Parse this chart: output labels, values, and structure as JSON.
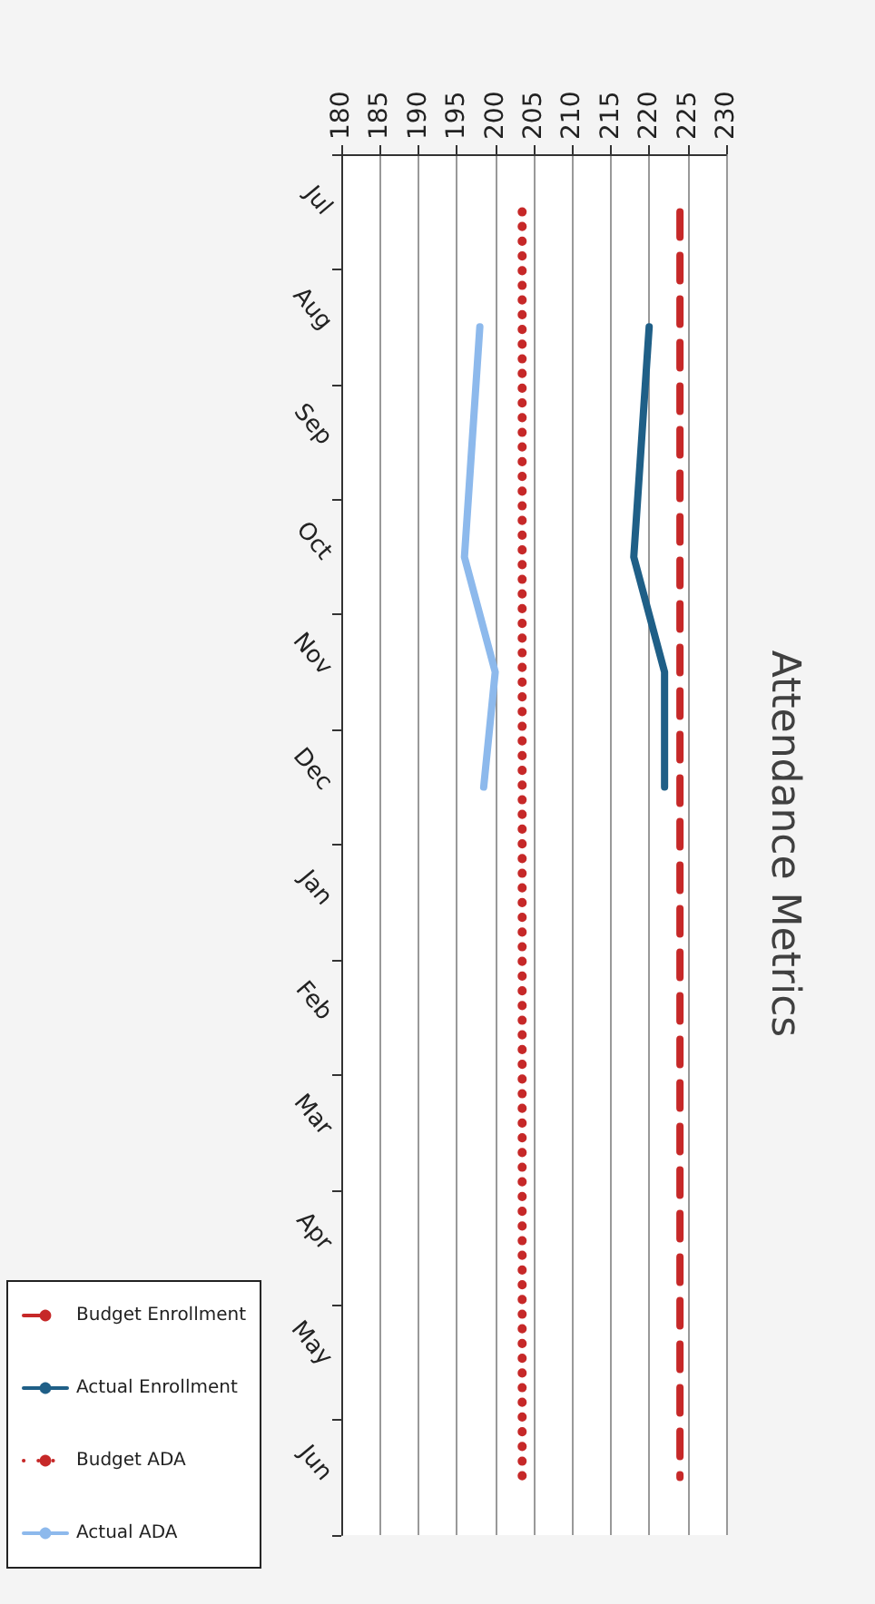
{
  "chart_data": {
    "type": "line",
    "title": "Attendance Metrics",
    "categories": [
      "Jul",
      "Aug",
      "Sep",
      "Oct",
      "Nov",
      "Dec",
      "Jan",
      "Feb",
      "Mar",
      "Apr",
      "May",
      "Jun"
    ],
    "series": [
      {
        "name": "Budget Enrollment",
        "color": "#c62828",
        "line_style": "dashed",
        "values": [
          224,
          224,
          224,
          224,
          224,
          224,
          224,
          224,
          224,
          224,
          224,
          224
        ]
      },
      {
        "name": "Actual Enrollment",
        "color": "#1f5f87",
        "line_style": "solid",
        "values": [
          null,
          220,
          219,
          218,
          222,
          222,
          null,
          null,
          null,
          null,
          null,
          null
        ]
      },
      {
        "name": "Budget ADA",
        "color": "#c62828",
        "line_style": "dotted",
        "values": [
          203.5,
          203.5,
          203.5,
          203.5,
          203.5,
          203.5,
          203.5,
          203.5,
          203.5,
          203.5,
          203.5,
          203.5
        ]
      },
      {
        "name": "Actual ADA",
        "color": "#8db9ec",
        "line_style": "solid",
        "values": [
          null,
          198,
          197,
          196,
          200,
          198.5,
          null,
          null,
          null,
          null,
          null,
          null
        ]
      }
    ],
    "orientation": "horizontal",
    "xlim": [
      180,
      230
    ],
    "xticks": [
      180,
      185,
      190,
      195,
      200,
      205,
      210,
      215,
      220,
      225,
      230
    ],
    "grid": "x",
    "legend": "bottom",
    "marker": "none"
  }
}
